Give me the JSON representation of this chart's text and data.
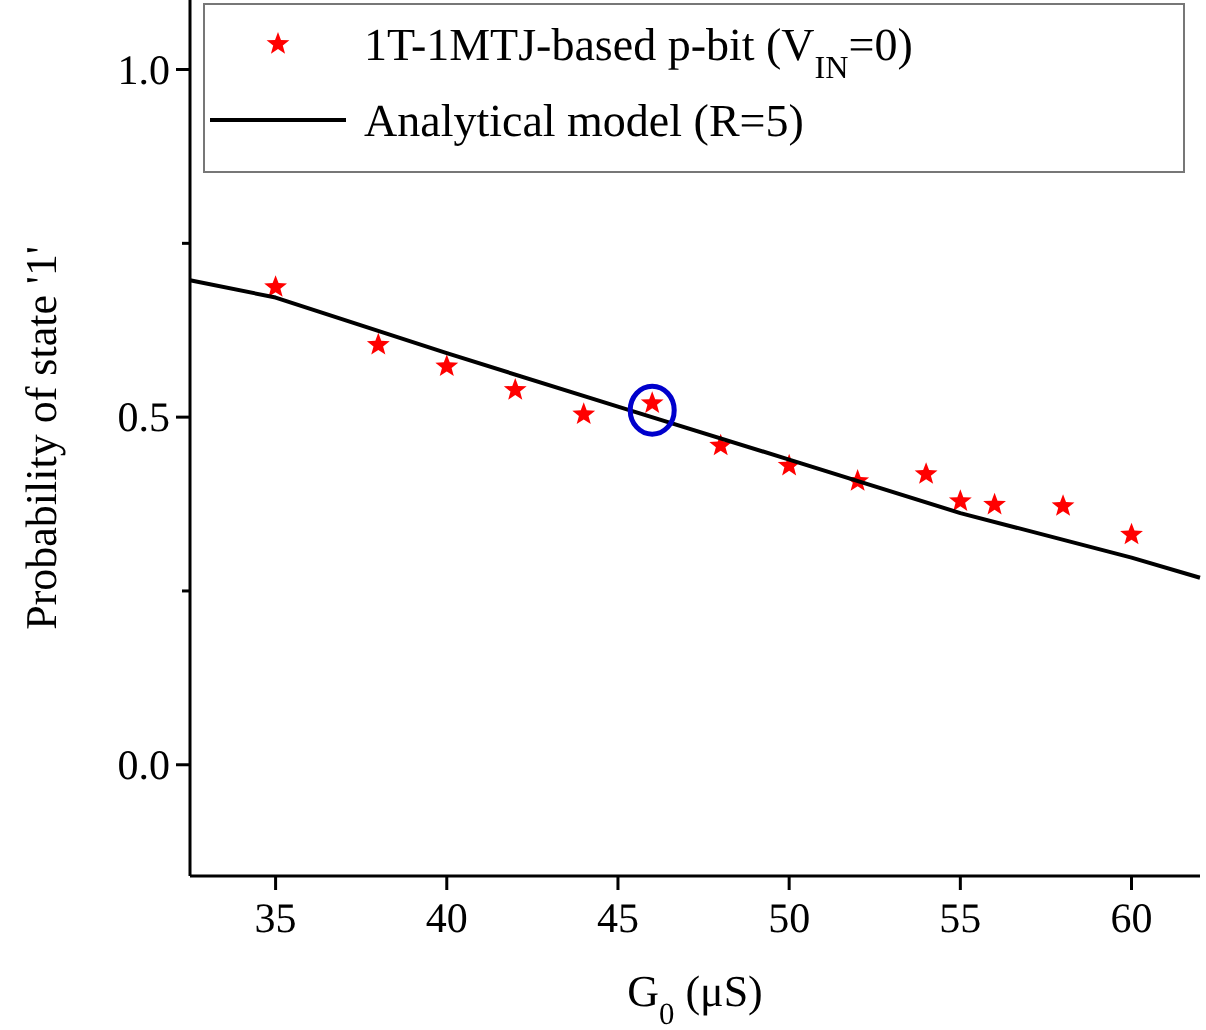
{
  "chart_data": {
    "type": "scatter",
    "xlabel": "G$_{0}$ (μS)",
    "ylabel": "Probability of state '1'",
    "xlim": [
      32.5,
      62
    ],
    "ylim": [
      -0.16,
      1.1
    ],
    "xticks": [
      35,
      40,
      45,
      50,
      55,
      60
    ],
    "yticks": [
      {
        "value": 0,
        "label": "0.0"
      },
      {
        "value": 0.25,
        "label": null
      },
      {
        "value": 0.5,
        "label": "0.5"
      },
      {
        "value": 0.75,
        "label": null
      },
      {
        "value": 1,
        "label": "1.0"
      }
    ],
    "legend": "top",
    "grid": false,
    "series": [
      {
        "name": "1T-1MTJ-based p-bit (V$_{IN}$=0)",
        "marker": "star",
        "color": "#ff0000",
        "x": [
          35,
          38,
          40,
          42,
          44,
          46,
          48,
          50,
          52,
          54,
          55,
          56,
          58,
          60
        ],
        "values": [
          0.687,
          0.604,
          0.573,
          0.539,
          0.504,
          0.52,
          0.459,
          0.43,
          0.408,
          0.418,
          0.379,
          0.374,
          0.372,
          0.331
        ]
      },
      {
        "name": "Analytical model (R=5)",
        "type": "line",
        "marker": "none",
        "line_style": "solid",
        "color": "#000000",
        "x": [
          32.5,
          35,
          40,
          45,
          50,
          55,
          60,
          62
        ],
        "values": [
          0.697,
          0.672,
          0.592,
          0.515,
          0.439,
          0.362,
          0.298,
          0.269
        ]
      }
    ]
  }
}
